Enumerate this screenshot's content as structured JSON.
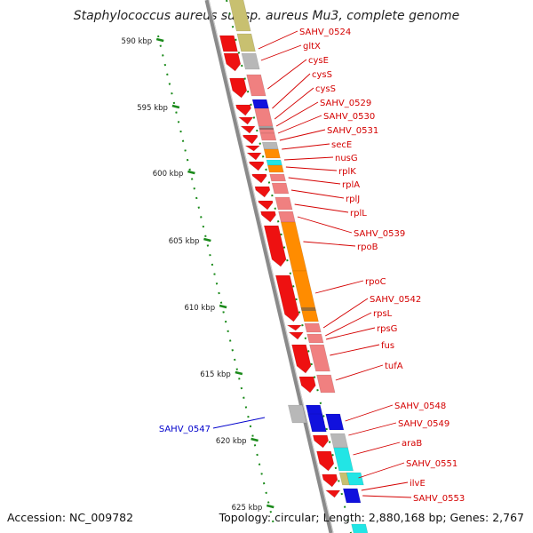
{
  "title": "Staphylococcus aureus subsp. aureus Mu3, complete genome",
  "footer": {
    "accession": "Accession: NC_009782",
    "topology": "Topology: circular; Length: 2,880,168 bp; Genes: 2,767"
  },
  "colors": {
    "label_forward": "#d40000",
    "label_reverse": "#0000cc",
    "backbone": "#8a8a8a",
    "ticks": "#1a8a1a",
    "gene_red": "#ee1111",
    "gene_pink": "#f08080",
    "gene_orange": "#ff8c00",
    "gene_blue": "#1111dd",
    "gene_cyan": "#22e5e5",
    "gene_gray": "#b8b8b8",
    "gene_olive": "#c8c070"
  },
  "scale_labels": [
    "590 kbp",
    "595 kbp",
    "600 kbp",
    "605 kbp",
    "610 kbp",
    "615 kbp",
    "620 kbp",
    "625 kbp"
  ],
  "gene_labels_forward": [
    "SAHV_0524",
    "gltX",
    "cysE",
    "cysS",
    "cysS",
    "SAHV_0529",
    "SAHV_0530",
    "SAHV_0531",
    "secE",
    "nusG",
    "rplK",
    "rplA",
    "rplJ",
    "rplL",
    "SAHV_0539",
    "rpoB",
    "rpoC",
    "SAHV_0542",
    "rpsL",
    "rpsG",
    "fus",
    "tufA",
    "SAHV_0548",
    "SAHV_0549",
    "araB",
    "SAHV_0551",
    "ilvE",
    "SAHV_0553"
  ],
  "gene_labels_reverse": [
    "SAHV_0547"
  ]
}
